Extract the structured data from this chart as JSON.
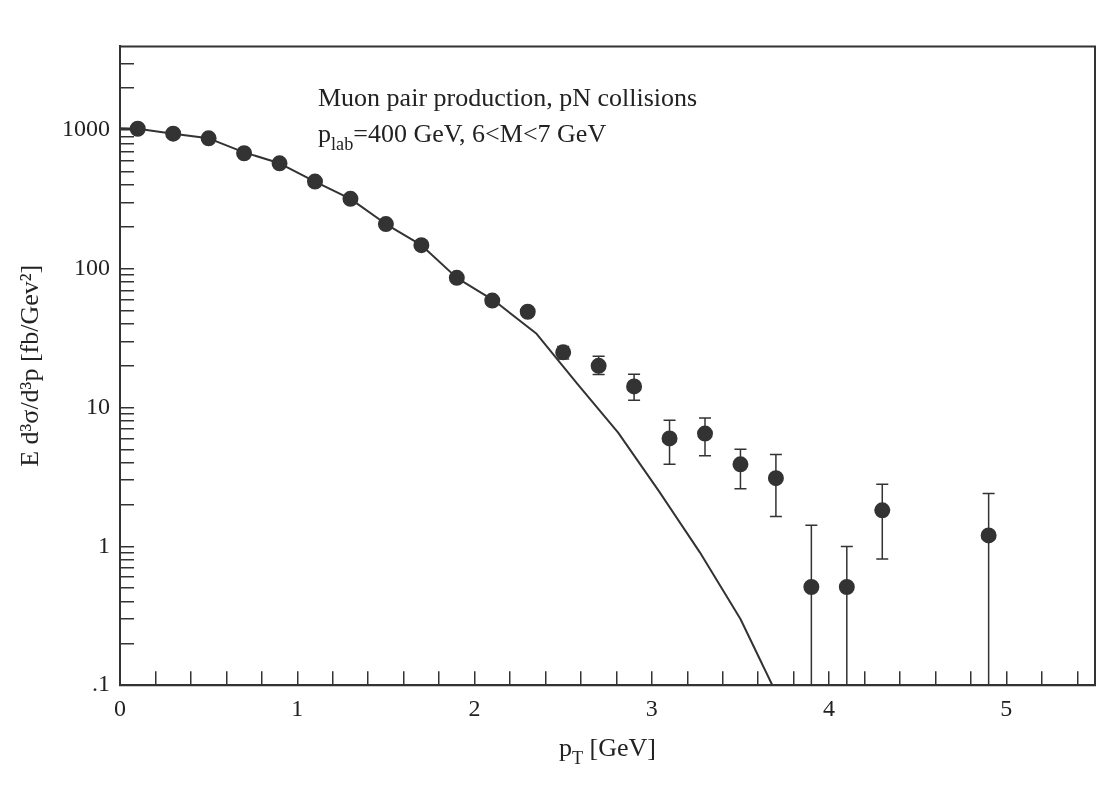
{
  "chart_data": {
    "type": "scatter",
    "xlabel": "p$_{T}$ [GeV]",
    "ylabel": "E d³σ/d³p [fb/Gev²]",
    "annotations": [
      "Muon pair production, pN collisions",
      "p$_{lab}$=400 GeV, 6<M<7 GeV"
    ],
    "log": "y",
    "grid": false,
    "legend": false,
    "marker": "circle",
    "xlim": [
      0,
      5.5
    ],
    "ylim": [
      0.1,
      4000
    ],
    "xticks": [
      0,
      {
        "value": 0.2,
        "label": null
      },
      {
        "value": 0.4,
        "label": null
      },
      {
        "value": 0.6,
        "label": null
      },
      {
        "value": 0.8,
        "label": null
      },
      1,
      {
        "value": 1.2,
        "label": null
      },
      {
        "value": 1.4,
        "label": null
      },
      {
        "value": 1.6,
        "label": null
      },
      {
        "value": 1.8,
        "label": null
      },
      2,
      {
        "value": 2.2,
        "label": null
      },
      {
        "value": 2.4,
        "label": null
      },
      {
        "value": 2.6,
        "label": null
      },
      {
        "value": 2.8,
        "label": null
      },
      3,
      {
        "value": 3.2,
        "label": null
      },
      {
        "value": 3.4,
        "label": null
      },
      {
        "value": 3.6,
        "label": null
      },
      {
        "value": 3.8,
        "label": null
      },
      4,
      {
        "value": 4.2,
        "label": null
      },
      {
        "value": 4.4,
        "label": null
      },
      {
        "value": 4.6,
        "label": null
      },
      {
        "value": 4.8,
        "label": null
      },
      5,
      {
        "value": 5.2,
        "label": null
      },
      {
        "value": 5.4,
        "label": null
      }
    ],
    "yticks": [
      {
        "value": 0.1,
        "label": ".1"
      },
      {
        "value": 0.2,
        "label": null
      },
      {
        "value": 0.3,
        "label": null
      },
      {
        "value": 0.4,
        "label": null
      },
      {
        "value": 0.5,
        "label": null
      },
      {
        "value": 0.6,
        "label": null
      },
      {
        "value": 0.7,
        "label": null
      },
      {
        "value": 0.8,
        "label": null
      },
      {
        "value": 0.9,
        "label": null
      },
      1,
      {
        "value": 2,
        "label": null
      },
      {
        "value": 3,
        "label": null
      },
      {
        "value": 4,
        "label": null
      },
      {
        "value": 5,
        "label": null
      },
      {
        "value": 6,
        "label": null
      },
      {
        "value": 7,
        "label": null
      },
      {
        "value": 8,
        "label": null
      },
      {
        "value": 9,
        "label": null
      },
      10,
      {
        "value": 20,
        "label": null
      },
      {
        "value": 30,
        "label": null
      },
      {
        "value": 40,
        "label": null
      },
      {
        "value": 50,
        "label": null
      },
      {
        "value": 60,
        "label": null
      },
      {
        "value": 70,
        "label": null
      },
      {
        "value": 80,
        "label": null
      },
      {
        "value": 90,
        "label": null
      },
      100,
      {
        "value": 200,
        "label": null
      },
      {
        "value": 300,
        "label": null
      },
      {
        "value": 400,
        "label": null
      },
      {
        "value": 500,
        "label": null
      },
      {
        "value": 600,
        "label": null
      },
      {
        "value": 700,
        "label": null
      },
      {
        "value": 800,
        "label": null
      },
      {
        "value": 900,
        "label": null
      },
      1000,
      {
        "value": 2000,
        "label": null
      },
      {
        "value": 3000,
        "label": null
      }
    ],
    "series": [
      {
        "type": "line",
        "color": "#333333",
        "marker": "none",
        "line_style": "solid",
        "x": [
          0,
          0.1,
          0.3,
          0.5,
          0.7,
          0.9,
          1.1,
          1.3,
          1.5,
          1.7,
          1.9,
          2.11,
          2.35,
          2.58,
          2.81,
          3.04,
          3.27,
          3.5,
          3.68
        ],
        "values": [
          1030,
          1020,
          940,
          870,
          690,
          575,
          425,
          319,
          210,
          148,
          86,
          59,
          34,
          14.8,
          6.6,
          2.5,
          0.91,
          0.3,
          0.1
        ]
      },
      {
        "color": "#333333",
        "x": [
          0.1,
          0.3,
          0.5,
          0.7,
          0.9,
          1.1,
          1.3,
          1.5,
          1.7,
          1.9,
          2.1,
          2.3,
          2.5,
          2.7,
          2.9,
          3.1,
          3.3,
          3.5,
          3.7,
          3.9,
          4.1,
          4.3,
          4.9
        ],
        "values": [
          1020,
          940,
          870,
          680,
          575,
          425,
          319,
          210,
          148,
          86,
          59,
          49,
          25,
          20,
          14.2,
          6,
          6.5,
          3.9,
          3.1,
          0.51,
          0.51,
          1.82,
          1.2
        ],
        "errors": [
          null,
          null,
          null,
          null,
          null,
          null,
          null,
          null,
          null,
          null,
          null,
          null,
          [
            22.4,
            27.5
          ],
          [
            17.3,
            23.4
          ],
          [
            11.3,
            17.4
          ],
          [
            3.9,
            8.1
          ],
          [
            4.5,
            8.4
          ],
          [
            2.6,
            5
          ],
          [
            1.64,
            4.6
          ],
          [
            0.1,
            1.42
          ],
          [
            0.1,
            1
          ],
          [
            0.81,
            2.8
          ],
          [
            0.1,
            2.4
          ]
        ]
      }
    ]
  }
}
